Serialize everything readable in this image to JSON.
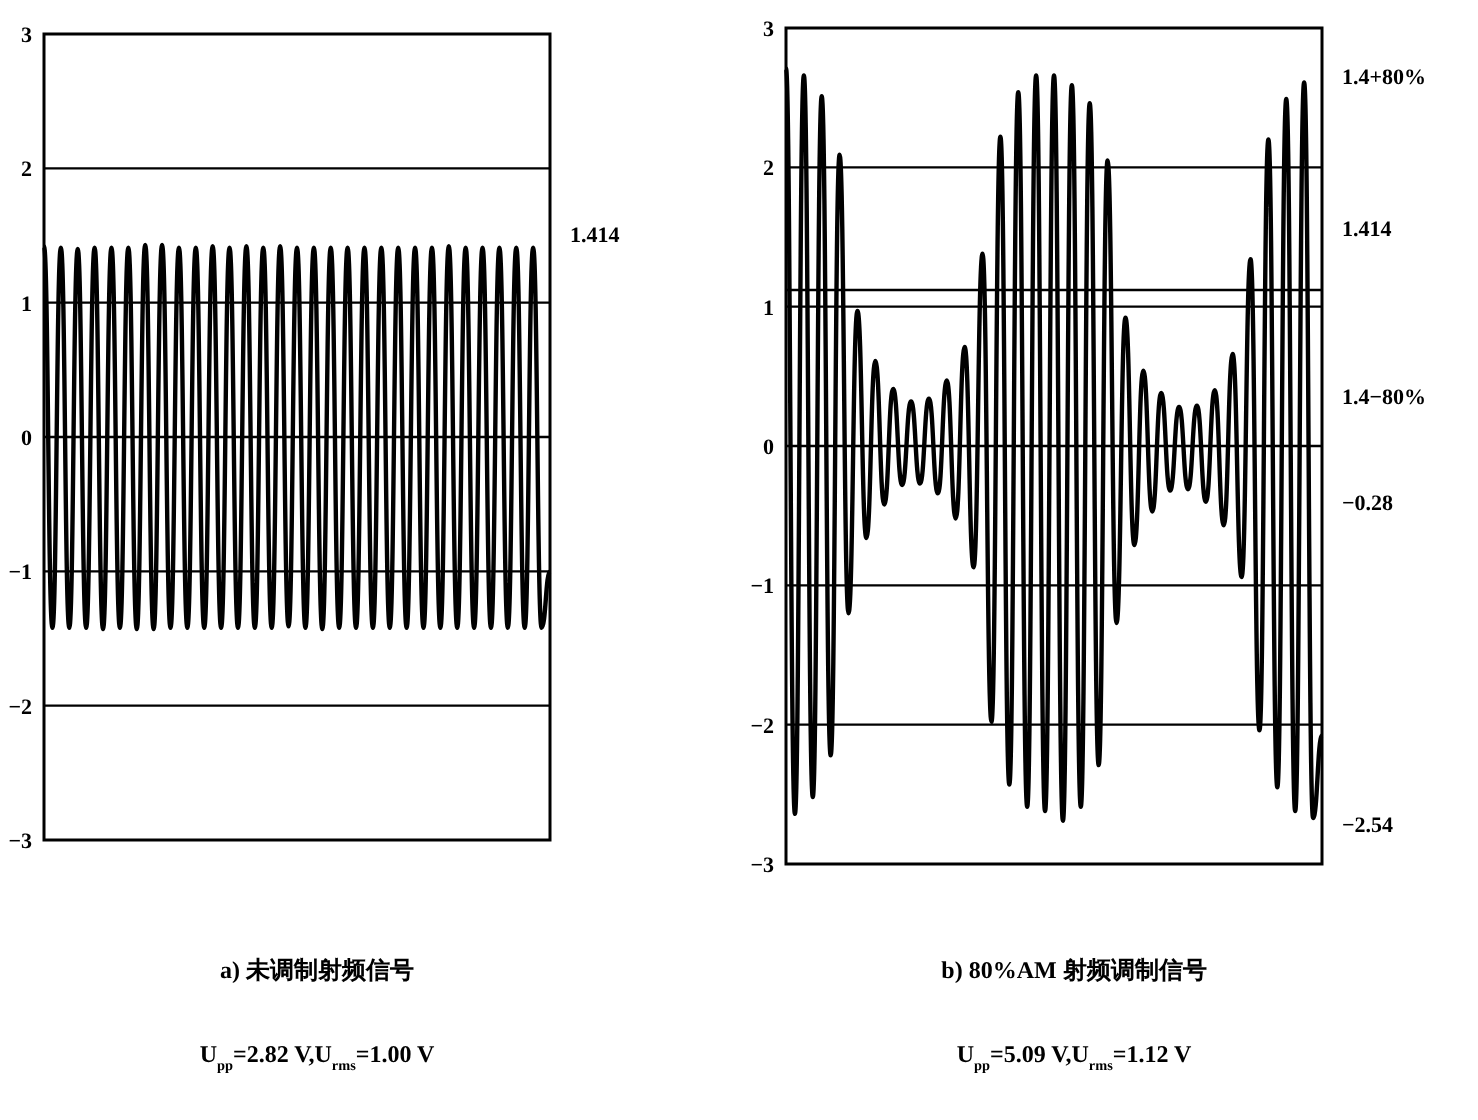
{
  "chart_data": [
    {
      "type": "line",
      "title": "a) 未调制射频信号",
      "subtitle": "U$_{pp}$=2.82 V,U$_{rms}$=1.00 V",
      "categories": [
        null,
        null,
        null,
        null,
        null,
        null,
        null,
        null,
        null,
        null,
        null,
        null,
        null,
        null,
        null,
        null,
        null,
        null,
        null,
        null,
        null,
        null,
        null,
        null,
        null,
        null,
        null,
        null,
        null,
        null,
        null,
        null,
        null,
        null,
        null,
        null,
        null,
        null,
        null,
        null,
        null,
        null,
        null,
        null,
        null,
        null,
        null,
        null,
        null,
        null,
        null,
        null,
        null,
        null,
        null,
        null,
        null,
        null,
        null,
        null,
        null
      ],
      "series": [
        {
          "color": "#000000",
          "values": [
            1.42,
            -1.42,
            1.41,
            -1.42,
            1.4,
            -1.42,
            1.41,
            -1.43,
            1.41,
            -1.42,
            1.41,
            -1.43,
            1.43,
            -1.43,
            1.43,
            -1.42,
            1.41,
            -1.42,
            1.41,
            -1.42,
            1.42,
            -1.42,
            1.41,
            -1.42,
            1.42,
            -1.42,
            1.41,
            -1.42,
            1.42,
            -1.41,
            1.41,
            -1.42,
            1.41,
            -1.43,
            1.41,
            -1.42,
            1.41,
            -1.42,
            1.41,
            -1.42,
            1.41,
            -1.42,
            1.41,
            -1.42,
            1.41,
            -1.42,
            1.41,
            -1.42,
            1.42,
            -1.42,
            1.41,
            -1.42,
            1.41,
            -1.42,
            1.41,
            -1.42,
            1.41,
            -1.42,
            1.41,
            -1.42,
            -1.0
          ]
        }
      ],
      "ylim": [
        -3,
        3
      ],
      "yticks": [
        -3,
        -2,
        -1,
        0,
        1,
        2,
        3
      ],
      "grid": "y",
      "tick_labels": "y",
      "annotations": [
        "1.414"
      ]
    },
    {
      "type": "line",
      "title": "b) 80%AM 射频调制信号",
      "subtitle": "U$_{pp}$=5.09 V,U$_{rms}$=1.12 V",
      "categories": [
        null,
        null,
        null,
        null,
        null,
        null,
        null,
        null,
        null,
        null,
        null,
        null,
        null,
        null,
        null,
        null,
        null,
        null,
        null,
        null,
        null,
        null,
        null,
        null,
        null,
        null,
        null,
        null,
        null,
        null,
        null,
        null,
        null,
        null,
        null,
        null,
        null,
        null,
        null,
        null,
        null,
        null,
        null,
        null,
        null,
        null,
        null,
        null,
        null,
        null,
        null,
        null,
        null,
        null,
        null,
        null,
        null,
        null,
        null,
        null,
        null
      ],
      "series": [
        {
          "color": "#000000",
          "values": [
            2.71,
            -2.64,
            2.66,
            -2.52,
            2.51,
            -2.22,
            2.09,
            -1.2,
            0.97,
            -0.66,
            0.61,
            -0.42,
            0.41,
            -0.28,
            0.32,
            -0.27,
            0.34,
            -0.34,
            0.47,
            -0.52,
            0.71,
            -0.87,
            1.38,
            -1.98,
            2.22,
            -2.43,
            2.54,
            -2.59,
            2.66,
            -2.62,
            2.66,
            -2.69,
            2.59,
            -2.59,
            2.46,
            -2.29,
            2.05,
            -1.27,
            0.92,
            -0.71,
            0.54,
            -0.47,
            0.38,
            -0.32,
            0.28,
            -0.31,
            0.29,
            -0.4,
            0.4,
            -0.57,
            0.66,
            -0.94,
            1.34,
            -2.04,
            2.2,
            -2.45,
            2.49,
            -2.62,
            2.61,
            -2.67,
            -2.08
          ]
        }
      ],
      "ylim": [
        -3,
        3
      ],
      "yticks": [
        -3,
        -2,
        -1,
        0,
        1,
        2,
        3
      ],
      "grid": "y",
      "tick_labels": "y",
      "ref_lines": [
        {
          "axis": "y",
          "value": 1.12
        }
      ],
      "annotations": [
        "1.4+80%",
        "1.414",
        "1.4−80%",
        "−0.28",
        "−2.54"
      ]
    }
  ]
}
